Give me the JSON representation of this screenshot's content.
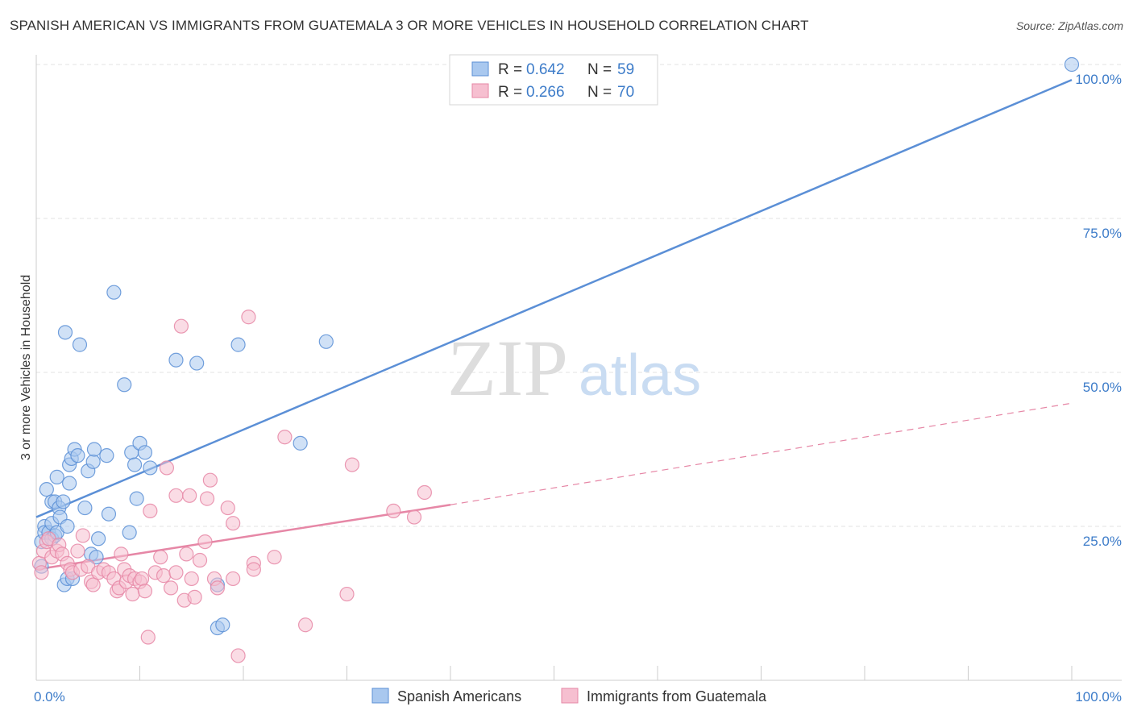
{
  "title": "SPANISH AMERICAN VS IMMIGRANTS FROM GUATEMALA 3 OR MORE VEHICLES IN HOUSEHOLD CORRELATION CHART",
  "source": "Source: ZipAtlas.com",
  "watermark": {
    "zip": "ZIP",
    "atlas": "atlas"
  },
  "legend_top": {
    "rows": [
      {
        "r_label": "R = ",
        "r_value": "0.642",
        "n_label": "N = ",
        "n_value": "59",
        "color": "#a9c8ef",
        "stroke": "#5b8fd6"
      },
      {
        "r_label": "R = ",
        "r_value": "0.266",
        "n_label": "N = ",
        "n_value": "70",
        "color": "#f6bfd0",
        "stroke": "#e687a6"
      }
    ]
  },
  "legend_bottom": [
    {
      "label": "Spanish Americans",
      "color": "#a9c8ef",
      "stroke": "#5b8fd6"
    },
    {
      "label": "Immigrants from Guatemala",
      "color": "#f6bfd0",
      "stroke": "#e687a6"
    }
  ],
  "chart_data": {
    "type": "scatter",
    "ylabel": "3 or more Vehicles in Household",
    "xlabel": "",
    "xlim": [
      0,
      100
    ],
    "ylim": [
      0,
      100
    ],
    "x_tick_labels": [
      "0.0%",
      "100.0%"
    ],
    "y_tick_labels": [
      "25.0%",
      "50.0%",
      "75.0%",
      "100.0%"
    ],
    "y_ticks": [
      25,
      50,
      75,
      100
    ],
    "grid": true,
    "series": [
      {
        "name": "Spanish Americans",
        "color": "#5b8fd6",
        "fill": "#a9c8ef",
        "trend": {
          "x": [
            0,
            100
          ],
          "y": [
            26.5,
            97.5
          ],
          "dashed_from": null
        },
        "points": [
          [
            0.5,
            18.5
          ],
          [
            0.5,
            22.5
          ],
          [
            0.8,
            25
          ],
          [
            0.8,
            24
          ],
          [
            1,
            31
          ],
          [
            1.2,
            24
          ],
          [
            1.5,
            23
          ],
          [
            1.5,
            29
          ],
          [
            1.5,
            25.5
          ],
          [
            1.8,
            29
          ],
          [
            1.8,
            23.5
          ],
          [
            2,
            33
          ],
          [
            2,
            24
          ],
          [
            2.2,
            28
          ],
          [
            2.3,
            26.5
          ],
          [
            2.6,
            29
          ],
          [
            2.7,
            15.5
          ],
          [
            2.8,
            56.5
          ],
          [
            3,
            16.5
          ],
          [
            3,
            25
          ],
          [
            3.2,
            35
          ],
          [
            3.2,
            32
          ],
          [
            3.4,
            36
          ],
          [
            3.5,
            16.5
          ],
          [
            3.7,
            37.5
          ],
          [
            4,
            36.5
          ],
          [
            4.2,
            54.5
          ],
          [
            4.7,
            28
          ],
          [
            5,
            34
          ],
          [
            5.3,
            20.5
          ],
          [
            5.5,
            35.5
          ],
          [
            5.6,
            37.5
          ],
          [
            5.8,
            20
          ],
          [
            6,
            23
          ],
          [
            6.8,
            36.5
          ],
          [
            7,
            27
          ],
          [
            7.5,
            63
          ],
          [
            8.5,
            48
          ],
          [
            9,
            24
          ],
          [
            9.2,
            37
          ],
          [
            9.5,
            35
          ],
          [
            9.7,
            29.5
          ],
          [
            10,
            38.5
          ],
          [
            10.5,
            37
          ],
          [
            11,
            34.5
          ],
          [
            13.5,
            52
          ],
          [
            15.5,
            51.5
          ],
          [
            17.5,
            8.5
          ],
          [
            17.5,
            15.5
          ],
          [
            18,
            9
          ],
          [
            19.5,
            54.5
          ],
          [
            25.5,
            38.5
          ],
          [
            28,
            55
          ],
          [
            100,
            100
          ]
        ]
      },
      {
        "name": "Immigrants from Guatemala",
        "color": "#e687a6",
        "fill": "#f6bfd0",
        "trend": {
          "x": [
            0,
            40
          ],
          "y": [
            18,
            28.5
          ],
          "dashed_to": [
            100,
            45
          ]
        },
        "points": [
          [
            0.3,
            19
          ],
          [
            0.5,
            17.5
          ],
          [
            0.7,
            21
          ],
          [
            1,
            22.5
          ],
          [
            1.2,
            23
          ],
          [
            1.5,
            20
          ],
          [
            2,
            21
          ],
          [
            2.2,
            22
          ],
          [
            2.5,
            20.5
          ],
          [
            3,
            19
          ],
          [
            3.3,
            18
          ],
          [
            3.5,
            17.5
          ],
          [
            4,
            21
          ],
          [
            4.3,
            18
          ],
          [
            4.5,
            23.5
          ],
          [
            5,
            18.5
          ],
          [
            5.3,
            16
          ],
          [
            5.5,
            15.5
          ],
          [
            6,
            17.5
          ],
          [
            6.5,
            18
          ],
          [
            7,
            17.5
          ],
          [
            7.5,
            16.5
          ],
          [
            7.8,
            14.5
          ],
          [
            8,
            15
          ],
          [
            8.2,
            20.5
          ],
          [
            8.5,
            18
          ],
          [
            8.7,
            16
          ],
          [
            9,
            17
          ],
          [
            9.3,
            14
          ],
          [
            9.5,
            16.5
          ],
          [
            10,
            16
          ],
          [
            10.2,
            16.5
          ],
          [
            10.5,
            14.5
          ],
          [
            10.8,
            7
          ],
          [
            11,
            27.5
          ],
          [
            11.5,
            17.5
          ],
          [
            12,
            20
          ],
          [
            12.3,
            17
          ],
          [
            12.6,
            34.5
          ],
          [
            13,
            15
          ],
          [
            13.5,
            17.5
          ],
          [
            13.5,
            30
          ],
          [
            14,
            57.5
          ],
          [
            14.3,
            13
          ],
          [
            14.5,
            20.5
          ],
          [
            14.8,
            30
          ],
          [
            15,
            16.5
          ],
          [
            15.3,
            13.5
          ],
          [
            15.8,
            19.5
          ],
          [
            16.3,
            22.5
          ],
          [
            16.5,
            29.5
          ],
          [
            16.8,
            32.5
          ],
          [
            17.2,
            16.5
          ],
          [
            17.5,
            15
          ],
          [
            18.5,
            28
          ],
          [
            19,
            25.5
          ],
          [
            19,
            16.5
          ],
          [
            19.5,
            4
          ],
          [
            20.5,
            59
          ],
          [
            21,
            19
          ],
          [
            21,
            18
          ],
          [
            23,
            20
          ],
          [
            24,
            39.5
          ],
          [
            26,
            9
          ],
          [
            30,
            14
          ],
          [
            30.5,
            35
          ],
          [
            34.5,
            27.5
          ],
          [
            36.5,
            26.5
          ],
          [
            37.5,
            30.5
          ]
        ]
      }
    ]
  }
}
